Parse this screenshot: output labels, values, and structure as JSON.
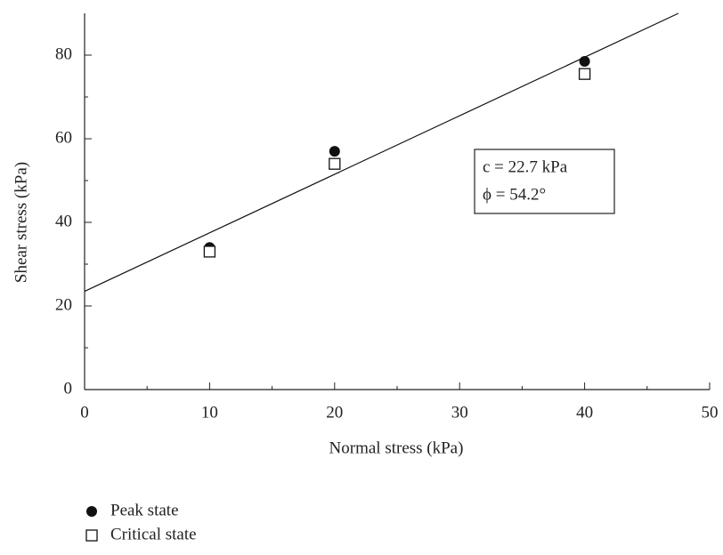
{
  "chart_data": {
    "type": "scatter",
    "x_label": "Normal stress (kPa)",
    "y_label": "Shear stress (kPa)",
    "series": [
      {
        "name": "Peak state",
        "color": "#111111",
        "marker": "circle",
        "x": [
          10,
          20,
          40
        ],
        "values": [
          34,
          57,
          78.5
        ]
      },
      {
        "name": "Critical state",
        "color": "#111111",
        "marker": "square",
        "x": [
          10,
          20,
          40
        ],
        "values": [
          33,
          54,
          75.5
        ]
      }
    ],
    "fit_line": {
      "x": [
        0,
        47.5
      ],
      "values": [
        23.5,
        90
      ],
      "color": "#111111"
    },
    "annotation": [
      "c = 22.7 kPa",
      "ϕ = 54.2°"
    ],
    "xlim": [
      0,
      50
    ],
    "ylim": [
      0,
      90
    ],
    "xticks": [
      0,
      10,
      20,
      30,
      40,
      50
    ],
    "yticks": [
      0,
      20,
      40,
      60,
      80
    ],
    "minor_xticks": [
      5,
      15,
      25,
      35,
      45
    ],
    "minor_yticks": [
      10,
      30,
      50,
      70
    ],
    "grid": false,
    "legend": "bottom-left"
  }
}
